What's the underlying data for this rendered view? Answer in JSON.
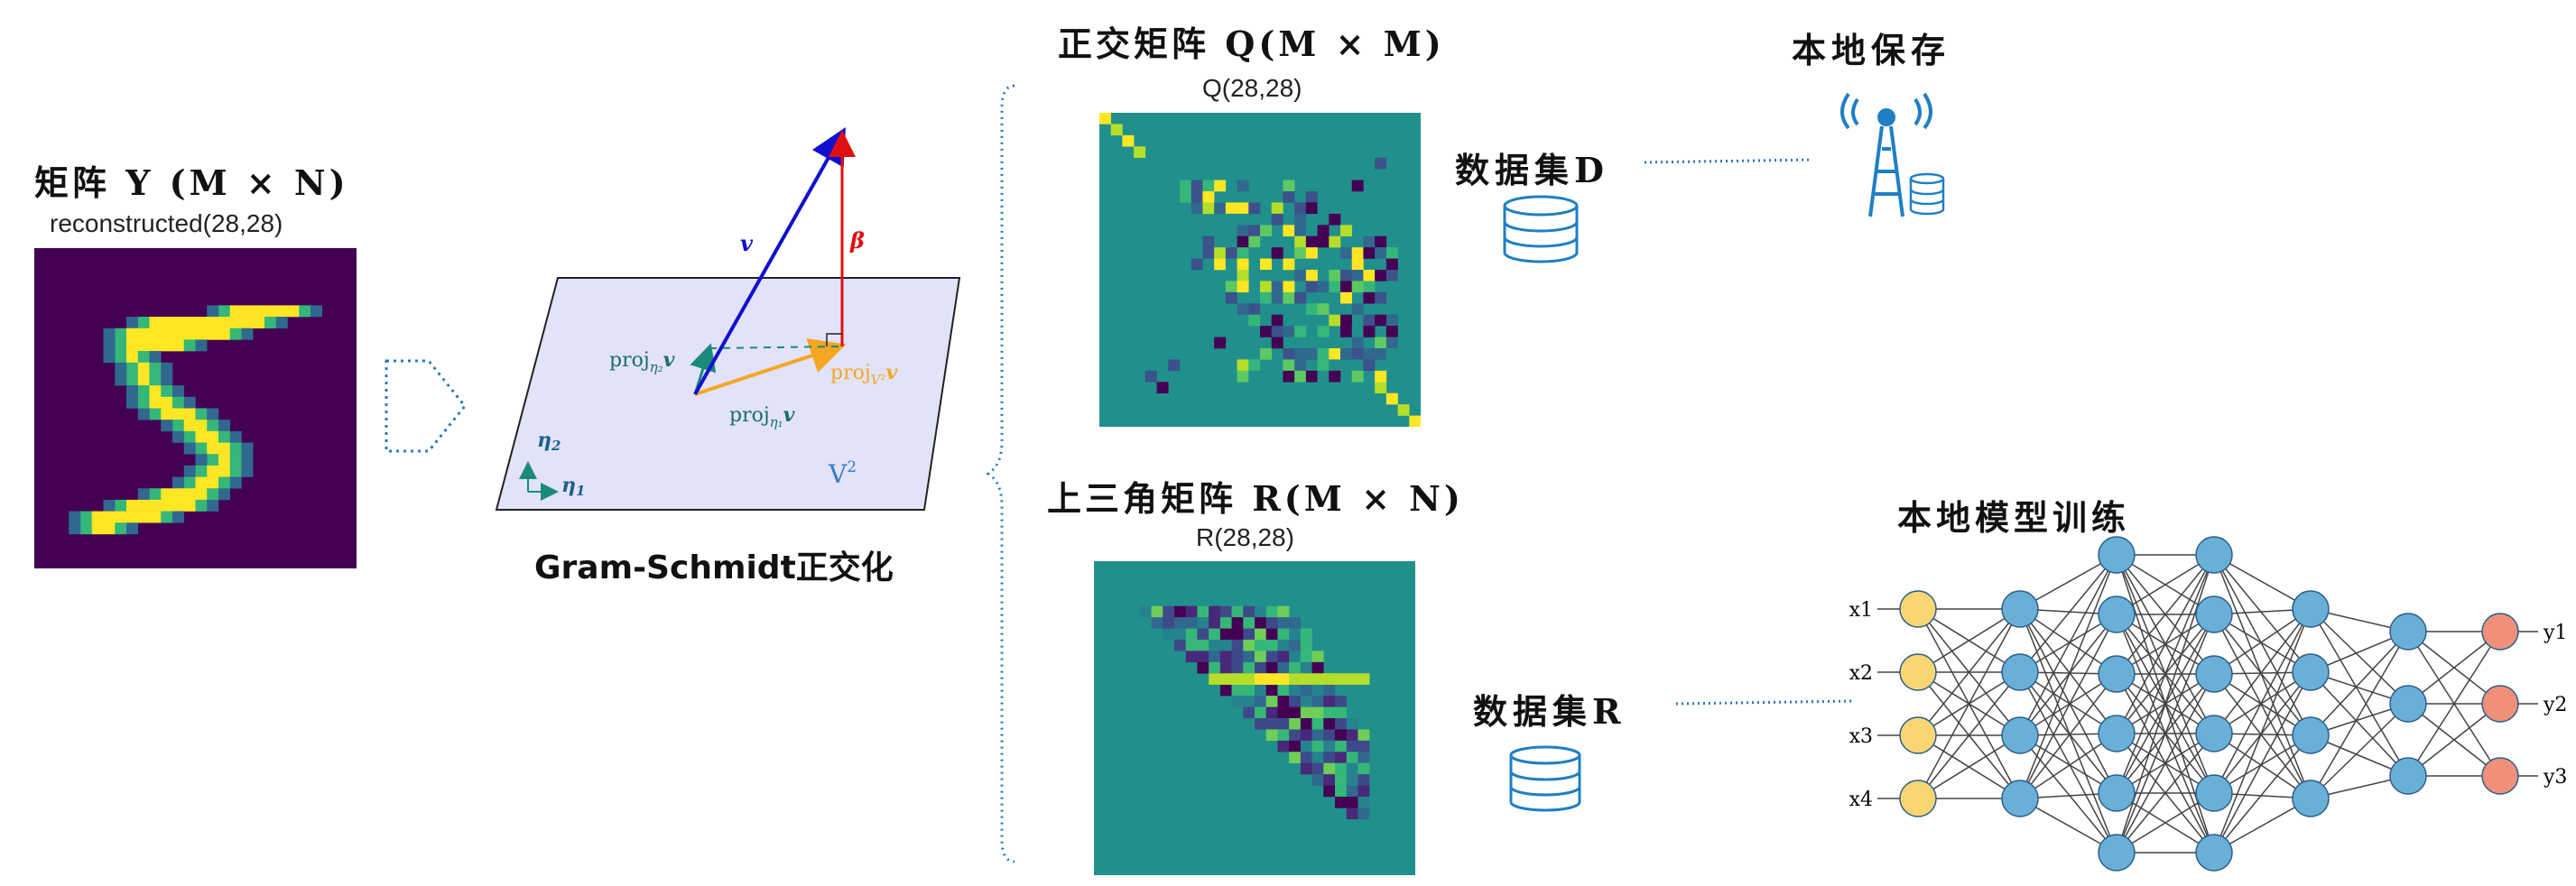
{
  "matrix_y": {
    "title": "矩阵 Y (M × N)",
    "subtitle": "reconstructed(28,28)"
  },
  "gram_schmidt": {
    "caption": "Gram-Schmidt正交化",
    "label_v": "v",
    "label_beta": "β",
    "label_proj_eta2": "proj",
    "label_proj_eta1": "proj",
    "label_proj_v2": "proj",
    "sub_eta2": "η₂",
    "sub_eta1": "η₁",
    "sub_v2": "V²",
    "proj_suffix": "v",
    "axis_eta2": "η",
    "axis_eta1": "η",
    "axis_eta2_sub": "2",
    "axis_eta1_sub": "1",
    "plane_label": "V",
    "plane_sup": "2"
  },
  "matrix_q": {
    "title": "正交矩阵 Q(M × M)",
    "subtitle": "Q(28,28)"
  },
  "matrix_r": {
    "title": "上三角矩阵 R(M × N)",
    "subtitle": "R(28,28)"
  },
  "dataset_d": {
    "label": "数据集D"
  },
  "dataset_r": {
    "label": "数据集R"
  },
  "local_save": {
    "title": "本地保存"
  },
  "training": {
    "title": "本地模型训练"
  },
  "network": {
    "inputs": [
      "x1",
      "x2",
      "x3",
      "x4"
    ],
    "outputs": [
      "y1",
      "y2",
      "y3"
    ],
    "layer_sizes": [
      4,
      4,
      6,
      6,
      4,
      3,
      3
    ],
    "colors": {
      "input": "#f9d673",
      "hidden": "#6aafd6",
      "output": "#f0907a",
      "edge": "#444444"
    }
  },
  "colors": {
    "viridis_dark": "#440154",
    "viridis_teal": "#21908d",
    "viridis_yellow": "#fde725",
    "accent_blue": "#1f7fc4"
  }
}
